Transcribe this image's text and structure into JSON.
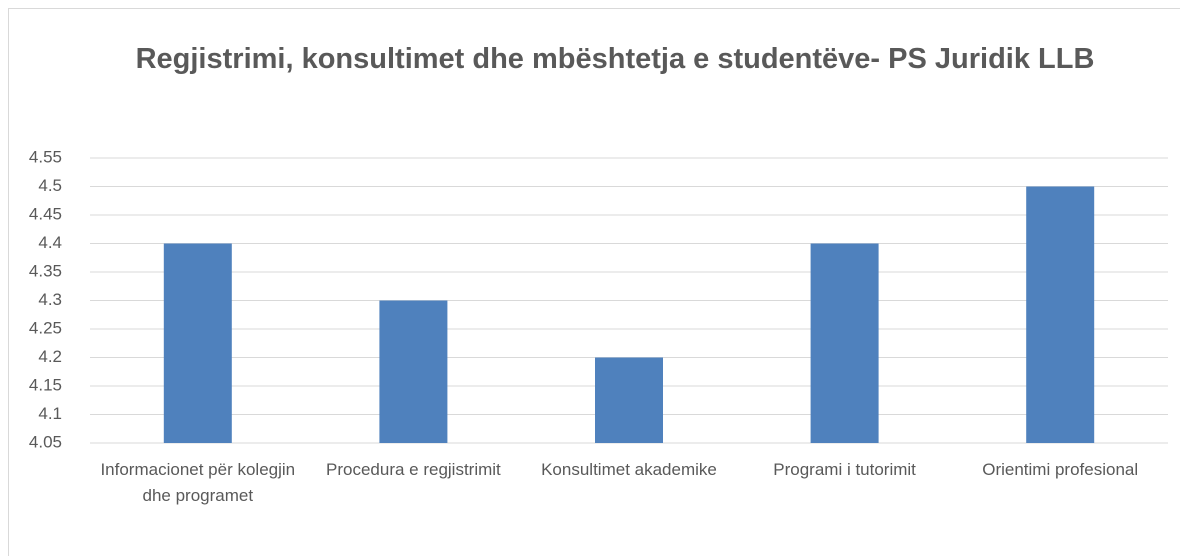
{
  "chart_data": {
    "type": "bar",
    "title": "Regjistrimi, konsultimet dhe mbështetja e studentëve- PS Juridik LLB",
    "categories": [
      "Informacionet për kolegjin dhe programet",
      "Procedura e regjistrimit",
      "Konsultimet akademike",
      "Programi i tutorimit",
      "Orientimi profesional"
    ],
    "values": [
      4.4,
      4.3,
      4.2,
      4.4,
      4.5
    ],
    "color": "#4f81bd",
    "ylim": [
      4.05,
      4.55
    ],
    "yticks": [
      4.05,
      4.1,
      4.15,
      4.2,
      4.25,
      4.3,
      4.35,
      4.4,
      4.45,
      4.5,
      4.55
    ],
    "grid": true
  }
}
